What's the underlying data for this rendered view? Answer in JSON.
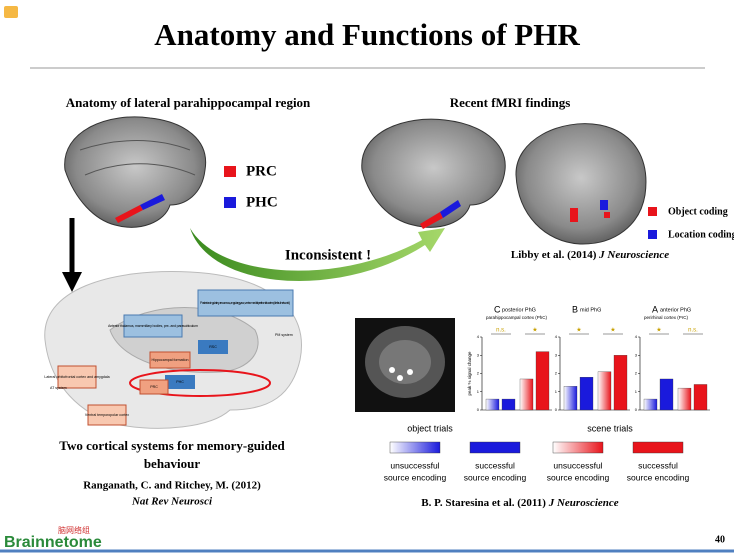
{
  "header": {
    "title": "Anatomy and Functions of PHR"
  },
  "left": {
    "heading": "Anatomy of lateral parahippocampal region",
    "legend": [
      {
        "label": "PRC",
        "color": "#e8141b"
      },
      {
        "label": "PHC",
        "color": "#1a1adc"
      }
    ],
    "diagram": {
      "labels": [
        "Posterior cingulate, precuneus, angular gyrus, ventromedial prefrontal cortex ('default network')",
        "Anterior thalamus, mammillary bodies, pre- and parasubiculum",
        "RSC",
        "Hippocampal formation",
        "PHC",
        "PRC",
        "PM system",
        "AT system",
        "Lateral orbitofrontal cortex and amygdala",
        "Ventral temporopolar cortex"
      ]
    },
    "caption": [
      "Two cortical systems for memory-guided",
      "behaviour"
    ],
    "citation": {
      "authors": "Ranganath, C. and Ritchey, M. (2012)",
      "journal": "Nat Rev Neurosci"
    }
  },
  "arrow_label": "Inconsistent !",
  "right": {
    "heading": "Recent fMRI findings",
    "legend": [
      {
        "label": "Object coding",
        "color": "#e8141b"
      },
      {
        "label": "Location coding",
        "color": "#1a1adc"
      }
    ],
    "citation": {
      "authors": "Libby et al. (2014)",
      "journal": "J Neuroscience"
    },
    "chart_data": {
      "type": "bar",
      "ylabel": "peak % signal change",
      "ylim": [
        0,
        4
      ],
      "yticks": [
        0,
        1,
        2,
        3,
        4
      ],
      "panels": [
        {
          "letter": "C",
          "title": "posterior PhG",
          "subtitle": "parahippocampal cortex (PhC)",
          "marks": [
            "n.s.",
            "★"
          ]
        },
        {
          "letter": "B",
          "title": "mid PhG",
          "marks": [
            "★",
            "★"
          ]
        },
        {
          "letter": "A",
          "title": "anterior PhG",
          "subtitle": "perirhinal cortex (PrC)",
          "marks": [
            "★",
            "n.s."
          ]
        }
      ],
      "groups": [
        "object trials",
        "scene trials"
      ],
      "series": [
        {
          "name": [
            "unsuccessful",
            "source encoding"
          ],
          "color": "#1a1adc",
          "gradient": true,
          "values": [
            0.6,
            1.3,
            0.6
          ]
        },
        {
          "name": [
            "successful",
            "source encoding"
          ],
          "color": "#1a1adc",
          "gradient": false,
          "values": [
            0.6,
            1.8,
            1.7
          ]
        },
        {
          "name": [
            "unsuccessful",
            "source encoding"
          ],
          "color": "#e8141b",
          "gradient": true,
          "values": [
            1.7,
            2.1,
            1.2
          ]
        },
        {
          "name": [
            "successful",
            "source encoding"
          ],
          "color": "#e8141b",
          "gradient": false,
          "values": [
            3.2,
            3.0,
            1.4
          ]
        }
      ]
    },
    "caption": {
      "authors": "B. P. Staresina et al. (2011)",
      "journal": "J Neuroscience"
    }
  },
  "footer": {
    "logo_cn": "脑网络组",
    "logo": "Brainnetome",
    "page": "40"
  }
}
